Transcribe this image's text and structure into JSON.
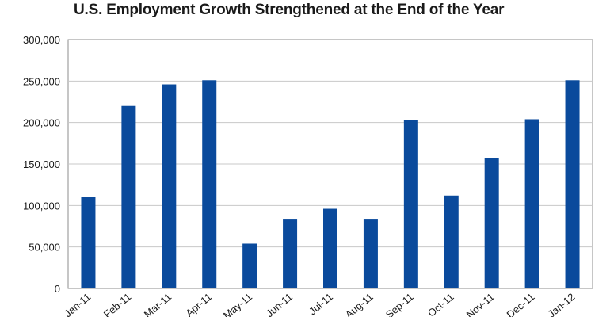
{
  "chart_data": {
    "type": "bar",
    "title": "U.S. Employment Growth Strengthened at the End of the Year",
    "categories": [
      "Jan-11",
      "Feb-11",
      "Mar-11",
      "Apr-11",
      "May-11",
      "Jun-11",
      "Jul-11",
      "Aug-11",
      "Sep-11",
      "Oct-11",
      "Nov-11",
      "Dec-11",
      "Jan-12"
    ],
    "values": [
      110000,
      220000,
      246000,
      251000,
      54000,
      84000,
      96000,
      84000,
      203000,
      112000,
      157000,
      204000,
      251000
    ],
    "xlabel": "",
    "ylabel": "",
    "ylim": [
      0,
      300000
    ],
    "yticks": [
      0,
      50000,
      100000,
      150000,
      200000,
      250000,
      300000
    ],
    "ytick_labels": [
      "0",
      "50,000",
      "100,000",
      "150,000",
      "200,000",
      "250,000",
      "300,000"
    ],
    "grid": true,
    "bar_color": "#0a4a9c",
    "grid_color": "#c8c8c8"
  }
}
